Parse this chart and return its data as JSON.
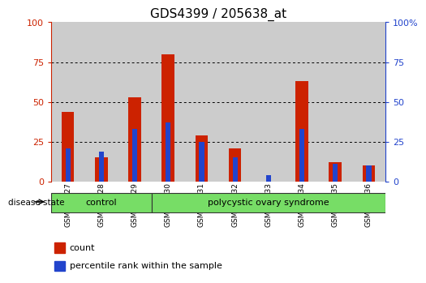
{
  "title": "GDS4399 / 205638_at",
  "samples": [
    "GSM850527",
    "GSM850528",
    "GSM850529",
    "GSM850530",
    "GSM850531",
    "GSM850532",
    "GSM850533",
    "GSM850534",
    "GSM850535",
    "GSM850536"
  ],
  "red_values": [
    44,
    15,
    53,
    80,
    29,
    21,
    0,
    63,
    12,
    10
  ],
  "blue_values": [
    21,
    19,
    33,
    37,
    25,
    15,
    4,
    33,
    11,
    10
  ],
  "groups": [
    {
      "label": "control",
      "start": 0,
      "end": 2
    },
    {
      "label": "polycystic ovary syndrome",
      "start": 3,
      "end": 9
    }
  ],
  "ylim": [
    0,
    100
  ],
  "yticks": [
    0,
    25,
    50,
    75,
    100
  ],
  "red_color": "#cc2200",
  "blue_color": "#2244cc",
  "col_bg_color": "#cccccc",
  "group_color": "#77dd66",
  "white": "#ffffff",
  "title_fontsize": 11,
  "tick_fontsize": 8,
  "bar_width": 0.38,
  "blue_bar_width": 0.15,
  "legend_count": "count",
  "legend_pct": "percentile rank within the sample",
  "disease_label": "disease state"
}
